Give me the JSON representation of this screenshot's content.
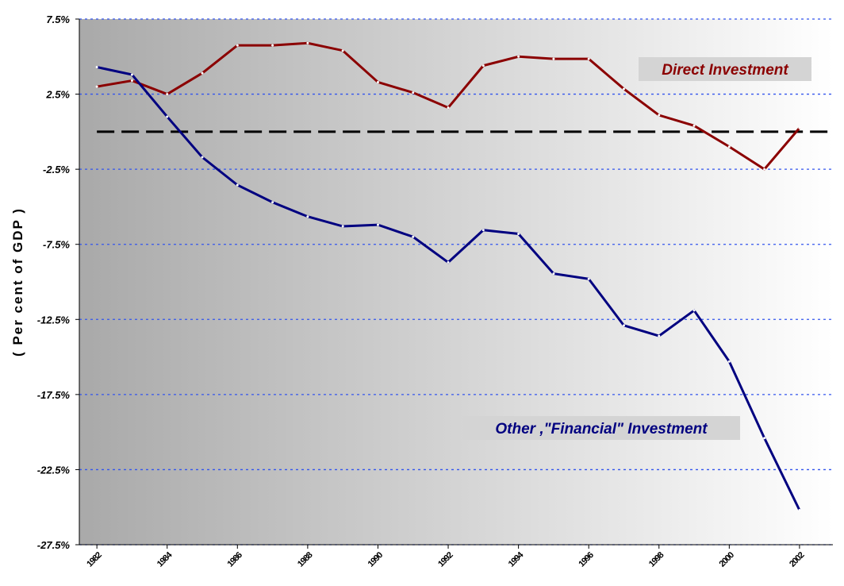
{
  "chart_data": {
    "type": "line",
    "y_label": "( Per cent of GDP )",
    "x": [
      1982,
      1983,
      1984,
      1985,
      1986,
      1987,
      1988,
      1989,
      1990,
      1991,
      1992,
      1993,
      1994,
      1995,
      1996,
      1997,
      1998,
      1999,
      2000,
      2001,
      2002
    ],
    "series": [
      {
        "name": "Direct Investment",
        "color": "#8b0000",
        "values": [
          3.0,
          3.4,
          2.5,
          3.9,
          5.75,
          5.75,
          5.9,
          5.4,
          3.3,
          2.6,
          1.6,
          4.4,
          5.0,
          4.85,
          4.85,
          2.85,
          1.1,
          0.4,
          -1.0,
          -2.5,
          0.25
        ]
      },
      {
        "name": "Other ,\"Financial\" Investment",
        "color": "#000080",
        "values": [
          4.3,
          3.8,
          1.0,
          -1.7,
          -3.55,
          -4.7,
          -5.65,
          -6.3,
          -6.2,
          -7.0,
          -8.7,
          -6.55,
          -6.8,
          -9.45,
          -9.8,
          -12.9,
          -13.6,
          -11.9,
          -15.3,
          -20.4,
          -25.2
        ]
      }
    ],
    "reference_line": 0,
    "xlim": [
      1981.5,
      2002.95
    ],
    "xticks": [
      1982,
      1984,
      1986,
      1988,
      1990,
      1992,
      1994,
      1996,
      1998,
      2000,
      2002
    ],
    "ylim": [
      -27.5,
      7.5
    ],
    "yticks": [
      {
        "value": -27.5,
        "label": "-27.5%"
      },
      {
        "value": -22.5,
        "label": "-22.5%"
      },
      {
        "value": -17.5,
        "label": "-17.5%"
      },
      {
        "value": -12.5,
        "label": "-12.5%"
      },
      {
        "value": -7.5,
        "label": "-7.5%"
      },
      {
        "value": -2.5,
        "label": "-2.5%"
      },
      {
        "value": 2.5,
        "label": "2.5%"
      },
      {
        "value": 7.5,
        "label": "7.5%"
      }
    ],
    "grid": true
  }
}
